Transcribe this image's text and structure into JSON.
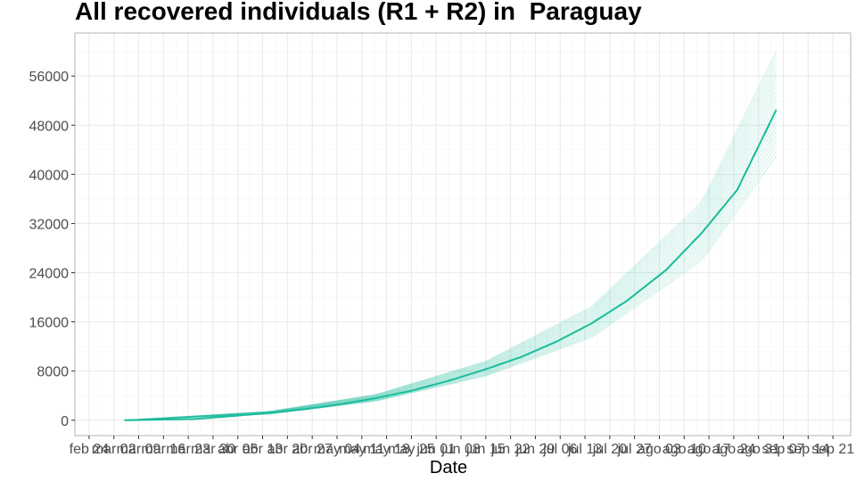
{
  "chart_data": {
    "type": "line",
    "title": "All recovered individuals (R1 + R2) in  Paraguay",
    "xlabel": "Date",
    "ylabel": "",
    "x_tick_labels": [
      "feb 24",
      "mar 02",
      "mar 09",
      "mar 16",
      "mar 23",
      "mar 30",
      "abr 06",
      "abr 13",
      "abr 20",
      "abr 27",
      "may 04",
      "may 11",
      "may 18",
      "may 25",
      "jun 01",
      "jun 08",
      "jun 15",
      "jun 22",
      "jun 29",
      "jul 06",
      "jul 13",
      "jul 20",
      "jul 27",
      "ago 03",
      "ago 10",
      "ago 17",
      "ago 24",
      "ago 31",
      "sep 07",
      "sep 14",
      "sep 21"
    ],
    "x_tick_dates": [
      "2020-02-24",
      "2020-03-02",
      "2020-03-09",
      "2020-03-16",
      "2020-03-23",
      "2020-03-30",
      "2020-04-06",
      "2020-04-13",
      "2020-04-20",
      "2020-04-27",
      "2020-05-04",
      "2020-05-11",
      "2020-05-18",
      "2020-05-25",
      "2020-06-01",
      "2020-06-08",
      "2020-06-15",
      "2020-06-22",
      "2020-06-29",
      "2020-07-06",
      "2020-07-13",
      "2020-07-20",
      "2020-07-27",
      "2020-08-03",
      "2020-08-10",
      "2020-08-17",
      "2020-08-24",
      "2020-08-31",
      "2020-09-07",
      "2020-09-14",
      "2020-09-21"
    ],
    "y_ticks": [
      0,
      8000,
      16000,
      24000,
      32000,
      40000,
      48000,
      56000
    ],
    "xlim": [
      "2020-02-20",
      "2020-09-26"
    ],
    "ylim": [
      -2500,
      63000
    ],
    "grid": true,
    "colors": {
      "main": "#1abc9c",
      "band": "#1abc9c",
      "grid": "#ebebeb",
      "frame": "#b3b3b3"
    },
    "series": [
      {
        "x": [
          "2020-03-05",
          "2020-03-25",
          "2020-04-05",
          "2020-04-15",
          "2020-04-25",
          "2020-05-05",
          "2020-05-15",
          "2020-05-25",
          "2020-06-05",
          "2020-06-15",
          "2020-06-25",
          "2020-07-05",
          "2020-07-15",
          "2020-07-25",
          "2020-08-05",
          "2020-08-15",
          "2020-08-25",
          "2020-09-05"
        ],
        "y": [
          0,
          200,
          700,
          1200,
          1800,
          2600,
          3600,
          4800,
          6500,
          8300,
          10300,
          12800,
          15800,
          19500,
          24500,
          30500,
          37500,
          50500
        ]
      }
    ],
    "ensemble_band": {
      "x": [
        "2020-03-05",
        "2020-04-15",
        "2020-05-15",
        "2020-06-15",
        "2020-07-15",
        "2020-08-15",
        "2020-09-05"
      ],
      "low": [
        0,
        1000,
        3100,
        7200,
        13500,
        26000,
        43000
      ],
      "high": [
        0,
        1450,
        4200,
        9600,
        18500,
        35500,
        60000
      ]
    }
  }
}
